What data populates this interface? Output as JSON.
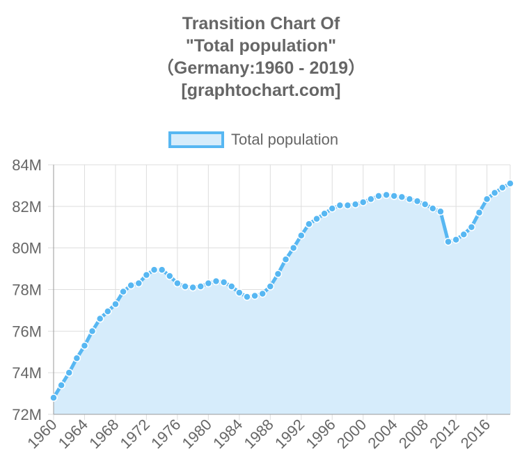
{
  "title": {
    "lines": [
      "Transition Chart Of",
      "\"Total population\"",
      "（Germany:1960 - 2019）",
      "[graphtochart.com]"
    ]
  },
  "legend": {
    "label": "Total population"
  },
  "colors": {
    "line": "#57b7f2",
    "fill": "#d6ecfb",
    "grid": "#dddddd",
    "axis": "#999999",
    "text": "#666666"
  },
  "chart_data": {
    "type": "area",
    "title": "Transition Chart Of \"Total population\" （Germany:1960 - 2019） [graphtochart.com]",
    "xlabel": "",
    "ylabel": "",
    "x": [
      1960,
      1961,
      1962,
      1963,
      1964,
      1965,
      1966,
      1967,
      1968,
      1969,
      1970,
      1971,
      1972,
      1973,
      1974,
      1975,
      1976,
      1977,
      1978,
      1979,
      1980,
      1981,
      1982,
      1983,
      1984,
      1985,
      1986,
      1987,
      1988,
      1989,
      1990,
      1991,
      1992,
      1993,
      1994,
      1995,
      1996,
      1997,
      1998,
      1999,
      2000,
      2001,
      2002,
      2003,
      2004,
      2005,
      2006,
      2007,
      2008,
      2009,
      2010,
      2011,
      2012,
      2013,
      2014,
      2015,
      2016,
      2017,
      2018,
      2019
    ],
    "series": [
      {
        "name": "Total population",
        "values": [
          72.8,
          73.4,
          74.0,
          74.7,
          75.3,
          76.0,
          76.6,
          76.95,
          77.3,
          77.9,
          78.2,
          78.3,
          78.7,
          78.95,
          78.95,
          78.65,
          78.3,
          78.15,
          78.1,
          78.15,
          78.3,
          78.4,
          78.35,
          78.15,
          77.85,
          77.65,
          77.7,
          77.8,
          78.15,
          78.75,
          79.45,
          80.0,
          80.6,
          81.15,
          81.4,
          81.65,
          81.9,
          82.05,
          82.05,
          82.1,
          82.2,
          82.35,
          82.5,
          82.55,
          82.5,
          82.45,
          82.35,
          82.25,
          82.1,
          81.9,
          81.75,
          80.3,
          80.4,
          80.65,
          81.0,
          81.7,
          82.35,
          82.65,
          82.9,
          83.1
        ]
      }
    ],
    "xticks": [
      "1960",
      "1964",
      "1968",
      "1972",
      "1976",
      "1980",
      "1984",
      "1988",
      "1992",
      "1996",
      "2000",
      "2004",
      "2008",
      "2012",
      "2016"
    ],
    "yticks": [
      "72M",
      "74M",
      "76M",
      "78M",
      "80M",
      "82M",
      "84M"
    ],
    "ylim": [
      72,
      84
    ],
    "xlim": [
      1960,
      2019
    ],
    "grid": true,
    "legend_position": "top"
  }
}
